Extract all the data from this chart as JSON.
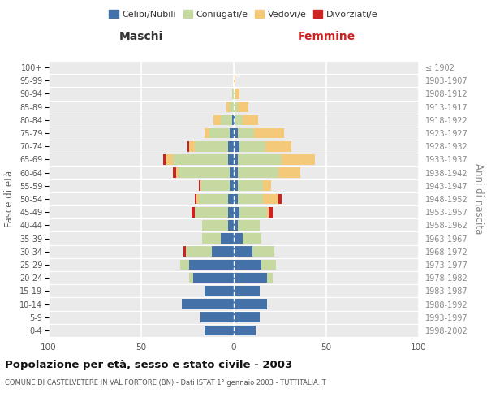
{
  "age_groups": [
    "0-4",
    "5-9",
    "10-14",
    "15-19",
    "20-24",
    "25-29",
    "30-34",
    "35-39",
    "40-44",
    "45-49",
    "50-54",
    "55-59",
    "60-64",
    "65-69",
    "70-74",
    "75-79",
    "80-84",
    "85-89",
    "90-94",
    "95-99",
    "100+"
  ],
  "birth_years": [
    "1998-2002",
    "1993-1997",
    "1988-1992",
    "1983-1987",
    "1978-1982",
    "1973-1977",
    "1968-1972",
    "1963-1967",
    "1958-1962",
    "1953-1957",
    "1948-1952",
    "1943-1947",
    "1938-1942",
    "1933-1937",
    "1928-1932",
    "1923-1927",
    "1918-1922",
    "1913-1917",
    "1908-1912",
    "1903-1907",
    "≤ 1902"
  ],
  "male": {
    "celibi": [
      16,
      18,
      28,
      16,
      22,
      24,
      12,
      7,
      3,
      3,
      3,
      2,
      2,
      3,
      3,
      2,
      1,
      0,
      0,
      0,
      0
    ],
    "coniugati": [
      0,
      0,
      0,
      0,
      2,
      5,
      14,
      10,
      14,
      18,
      16,
      16,
      28,
      30,
      18,
      11,
      6,
      2,
      1,
      0,
      0
    ],
    "vedovi": [
      0,
      0,
      0,
      0,
      0,
      0,
      0,
      0,
      0,
      0,
      1,
      0,
      1,
      4,
      3,
      3,
      4,
      2,
      0,
      0,
      0
    ],
    "divorziati": [
      0,
      0,
      0,
      0,
      0,
      0,
      1,
      0,
      0,
      2,
      1,
      1,
      2,
      1,
      1,
      0,
      0,
      0,
      0,
      0,
      0
    ]
  },
  "female": {
    "nubili": [
      12,
      14,
      18,
      14,
      18,
      15,
      10,
      5,
      2,
      3,
      2,
      2,
      2,
      2,
      3,
      2,
      1,
      0,
      0,
      0,
      0
    ],
    "coniugate": [
      0,
      0,
      0,
      0,
      3,
      8,
      12,
      10,
      12,
      15,
      14,
      14,
      22,
      24,
      14,
      9,
      4,
      2,
      1,
      0,
      0
    ],
    "vedove": [
      0,
      0,
      0,
      0,
      0,
      0,
      0,
      0,
      0,
      1,
      8,
      4,
      12,
      18,
      14,
      16,
      8,
      6,
      2,
      1,
      0
    ],
    "divorziate": [
      0,
      0,
      0,
      0,
      0,
      0,
      0,
      0,
      0,
      2,
      2,
      0,
      0,
      0,
      0,
      0,
      0,
      0,
      0,
      0,
      0
    ]
  },
  "colors": {
    "celibi": "#4472a8",
    "coniugati": "#c5d9a0",
    "vedovi": "#f5c97a",
    "divorziati": "#cc2222"
  },
  "title": "Popolazione per età, sesso e stato civile - 2003",
  "subtitle": "COMUNE DI CASTELVETERE IN VAL FORTORE (BN) - Dati ISTAT 1° gennaio 2003 - TUTTITALIA.IT",
  "xlabel_left": "Maschi",
  "xlabel_right": "Femmine",
  "ylabel_left": "Fasce di età",
  "ylabel_right": "Anni di nascita",
  "xlim": 100,
  "bg_color": "#eaeaea",
  "legend_labels": [
    "Celibi/Nubili",
    "Coniugati/e",
    "Vedovi/e",
    "Divorziati/e"
  ]
}
